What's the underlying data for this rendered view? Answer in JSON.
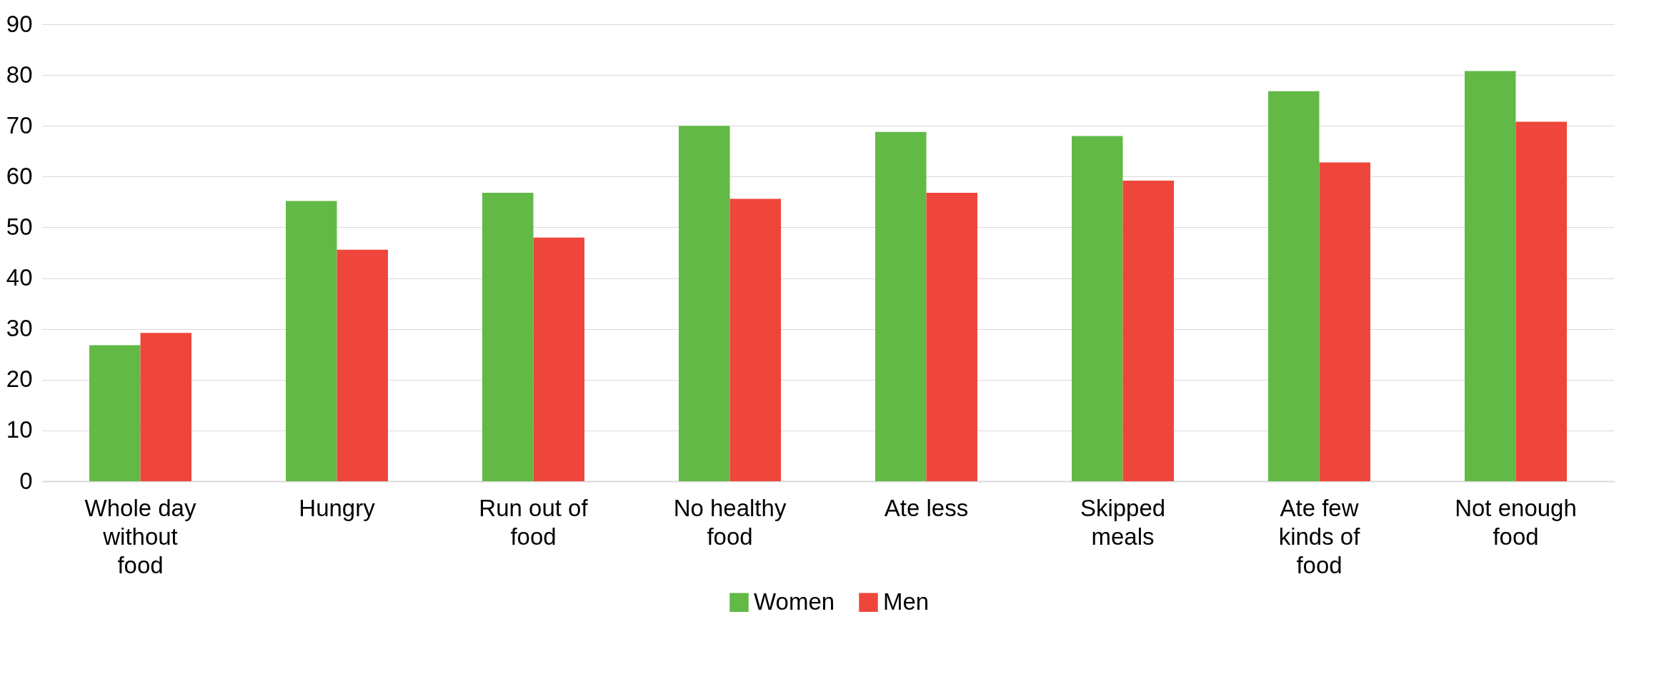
{
  "chart_data": {
    "type": "bar",
    "categories": [
      "Whole day without food",
      "Hungry",
      "Run out of food",
      "No healthy food",
      "Ate less",
      "Skipped meals",
      "Ate few kinds of food",
      "Not enough food"
    ],
    "series": [
      {
        "name": "Women",
        "color": "#62b946",
        "values": [
          26.8,
          55.2,
          56.8,
          70.0,
          68.8,
          68.0,
          76.8,
          80.8
        ]
      },
      {
        "name": "Men",
        "color": "#ee463b",
        "values": [
          29.2,
          45.6,
          48.0,
          55.6,
          56.8,
          59.2,
          62.8,
          70.8
        ]
      }
    ],
    "ylim": [
      0,
      90
    ],
    "yticks": [
      0,
      10,
      20,
      30,
      40,
      50,
      60,
      70,
      80,
      90
    ],
    "grid": "y",
    "legend": "bottom"
  }
}
